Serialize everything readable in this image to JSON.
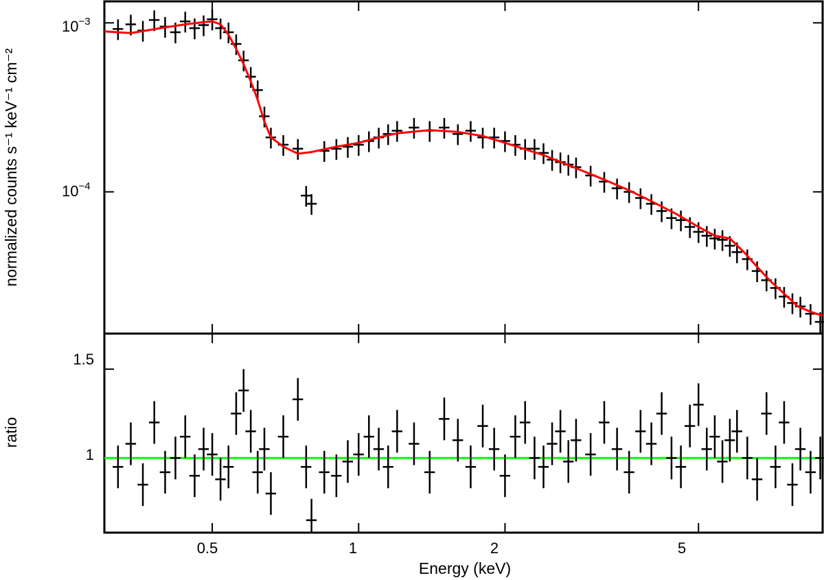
{
  "chart_data": [
    {
      "type": "scatter",
      "panel": "spectrum",
      "ylabel": "normalized counts s⁻¹ keV⁻¹ cm⁻²",
      "xscale": "log",
      "yscale": "log",
      "xlim": [
        0.3,
        9.0
      ],
      "ylim": [
        1.45e-05,
        0.00134
      ],
      "ytick_labels": [
        {
          "value": 0.001,
          "base": "10",
          "exp": "−3"
        },
        {
          "value": 0.0001,
          "base": "10",
          "exp": "−4"
        }
      ],
      "colors": {
        "data": "#000000",
        "model": "#ff0000"
      },
      "series": [
        {
          "kind": "data",
          "x": [
            0.32,
            0.34,
            0.36,
            0.38,
            0.4,
            0.42,
            0.44,
            0.46,
            0.48,
            0.5,
            0.52,
            0.54,
            0.56,
            0.58,
            0.6,
            0.62,
            0.64,
            0.66,
            0.7,
            0.75,
            0.78,
            0.8,
            0.85,
            0.9,
            0.95,
            1.0,
            1.05,
            1.1,
            1.15,
            1.2,
            1.3,
            1.4,
            1.5,
            1.6,
            1.7,
            1.8,
            1.9,
            2.0,
            2.1,
            2.2,
            2.3,
            2.4,
            2.5,
            2.6,
            2.7,
            2.8,
            3.0,
            3.2,
            3.4,
            3.6,
            3.8,
            4.0,
            4.2,
            4.4,
            4.6,
            4.8,
            5.0,
            5.2,
            5.4,
            5.6,
            5.8,
            6.0,
            6.3,
            6.6,
            6.9,
            7.2,
            7.5,
            7.8,
            8.1,
            8.5,
            8.9
          ],
          "y": [
            0.00092,
            0.00098,
            0.0009,
            0.00104,
            0.00095,
            0.00088,
            0.00102,
            0.00093,
            0.00097,
            0.00105,
            0.00093,
            0.00088,
            0.00075,
            0.0006,
            0.00048,
            0.0004,
            0.00028,
            0.00021,
            0.00019,
            0.00018,
            9.5e-05,
            8.5e-05,
            0.000175,
            0.00018,
            0.000185,
            0.00019,
            0.0002,
            0.00021,
            0.00022,
            0.00023,
            0.00024,
            0.00023,
            0.00024,
            0.00022,
            0.00023,
            0.00021,
            0.00021,
            0.0002,
            0.00019,
            0.00018,
            0.00018,
            0.00017,
            0.000155,
            0.00015,
            0.000145,
            0.00014,
            0.000125,
            0.000115,
            0.000105,
            0.0001,
            9.2e-05,
            8.5e-05,
            7.7e-05,
            7e-05,
            6.8e-05,
            6.2e-05,
            5.8e-05,
            5.5e-05,
            5.3e-05,
            5.2e-05,
            4.8e-05,
            4.4e-05,
            4e-05,
            3.4e-05,
            3e-05,
            2.7e-05,
            2.4e-05,
            2.2e-05,
            2.1e-05,
            1.9e-05,
            1.7e-05
          ],
          "yerr_frac": 0.14
        },
        {
          "kind": "model",
          "x": [
            0.3,
            0.34,
            0.4,
            0.44,
            0.48,
            0.5,
            0.52,
            0.54,
            0.56,
            0.58,
            0.6,
            0.62,
            0.64,
            0.66,
            0.7,
            0.75,
            0.8,
            0.9,
            1.0,
            1.1,
            1.2,
            1.4,
            1.6,
            1.8,
            2.0,
            2.4,
            2.8,
            3.2,
            3.6,
            4.0,
            4.5,
            5.0,
            5.4,
            5.8,
            6.2,
            6.6,
            7.0,
            7.5,
            8.0,
            8.5,
            9.0
          ],
          "y": [
            0.00089,
            0.00087,
            0.00094,
            0.00098,
            0.00101,
            0.00102,
            0.00098,
            0.00085,
            0.0007,
            0.00057,
            0.00045,
            0.00035,
            0.00026,
            0.00021,
            0.000185,
            0.000168,
            0.000172,
            0.000185,
            0.000195,
            0.00021,
            0.000222,
            0.000232,
            0.000226,
            0.000214,
            0.000195,
            0.000165,
            0.000138,
            0.000118,
            0.000102,
            8.8e-05,
            7.4e-05,
            6.2e-05,
            5.5e-05,
            5.3e-05,
            4.4e-05,
            3.6e-05,
            3e-05,
            2.5e-05,
            2.1e-05,
            1.95e-05,
            1.85e-05
          ]
        }
      ]
    },
    {
      "type": "scatter",
      "panel": "ratio",
      "xlabel": "Energy (keV)",
      "ylabel": "ratio",
      "xscale": "log",
      "xlim": [
        0.3,
        9.0
      ],
      "ylim": [
        0.58,
        1.7
      ],
      "xticks": [
        0.5,
        1,
        2,
        5
      ],
      "xtick_labels": [
        "0.5",
        "1",
        "2",
        "5"
      ],
      "yticks": [
        1,
        1.5
      ],
      "ytick_labels": [
        "1",
        "1.5"
      ],
      "reference_line": 1,
      "colors": {
        "data": "#000000",
        "reference": "#00ff00"
      },
      "series": [
        {
          "kind": "data",
          "x": [
            0.32,
            0.34,
            0.36,
            0.38,
            0.4,
            0.42,
            0.44,
            0.46,
            0.48,
            0.5,
            0.52,
            0.54,
            0.56,
            0.58,
            0.6,
            0.62,
            0.64,
            0.66,
            0.7,
            0.75,
            0.78,
            0.8,
            0.85,
            0.9,
            0.95,
            1.0,
            1.05,
            1.1,
            1.15,
            1.2,
            1.3,
            1.4,
            1.5,
            1.6,
            1.7,
            1.8,
            1.9,
            2.0,
            2.1,
            2.2,
            2.3,
            2.4,
            2.5,
            2.6,
            2.7,
            2.8,
            3.0,
            3.2,
            3.4,
            3.6,
            3.8,
            4.0,
            4.2,
            4.4,
            4.6,
            4.8,
            5.0,
            5.2,
            5.4,
            5.6,
            5.8,
            6.0,
            6.3,
            6.6,
            6.9,
            7.2,
            7.5,
            7.8,
            8.1,
            8.5,
            8.9
          ],
          "y": [
            0.95,
            1.08,
            0.85,
            1.2,
            0.92,
            1.0,
            1.12,
            0.9,
            1.05,
            1.02,
            0.88,
            0.95,
            1.25,
            1.38,
            1.15,
            0.92,
            1.05,
            0.8,
            1.12,
            1.33,
            0.95,
            0.65,
            0.92,
            0.9,
            0.98,
            1.02,
            1.12,
            1.05,
            0.95,
            1.15,
            1.08,
            0.92,
            1.22,
            1.1,
            0.95,
            1.18,
            1.05,
            0.9,
            1.12,
            1.2,
            1.0,
            0.95,
            1.08,
            1.15,
            0.98,
            1.1,
            1.02,
            1.2,
            1.05,
            0.92,
            1.15,
            1.08,
            1.25,
            1.0,
            0.95,
            1.18,
            1.3,
            1.05,
            1.12,
            0.98,
            1.1,
            1.15,
            1.0,
            0.88,
            1.25,
            0.95,
            1.2,
            0.85,
            1.05,
            0.92,
            1.0
          ],
          "yerr": 0.12
        }
      ]
    }
  ]
}
